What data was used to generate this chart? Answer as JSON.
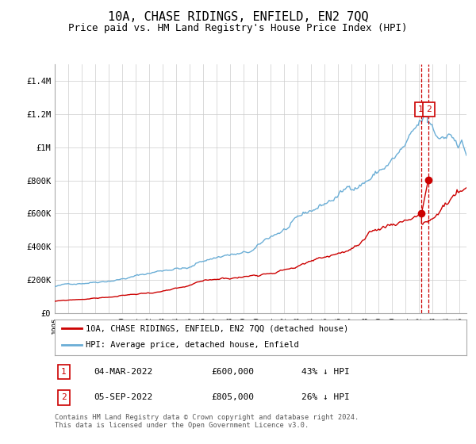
{
  "title": "10A, CHASE RIDINGS, ENFIELD, EN2 7QQ",
  "subtitle": "Price paid vs. HM Land Registry's House Price Index (HPI)",
  "title_fontsize": 11,
  "subtitle_fontsize": 9,
  "ylim": [
    0,
    1500000
  ],
  "xlim_start": 1995.0,
  "xlim_end": 2025.5,
  "yticks": [
    0,
    200000,
    400000,
    600000,
    800000,
    1000000,
    1200000,
    1400000
  ],
  "ytick_labels": [
    "£0",
    "£200K",
    "£400K",
    "£600K",
    "£800K",
    "£1M",
    "£1.2M",
    "£1.4M"
  ],
  "hpi_color": "#6baed6",
  "price_color": "#cc0000",
  "dashed_color": "#cc0000",
  "marker_color": "#cc0000",
  "legend_entries": [
    "10A, CHASE RIDINGS, ENFIELD, EN2 7QQ (detached house)",
    "HPI: Average price, detached house, Enfield"
  ],
  "sale1_date": 2022.17,
  "sale1_price": 600000,
  "sale2_date": 2022.67,
  "sale2_price": 805000,
  "annotation_box_color": "#cc0000",
  "table_row1": [
    "1",
    "04-MAR-2022",
    "£600,000",
    "43% ↓ HPI"
  ],
  "table_row2": [
    "2",
    "05-SEP-2022",
    "£805,000",
    "26% ↓ HPI"
  ],
  "footnote": "Contains HM Land Registry data © Crown copyright and database right 2024.\nThis data is licensed under the Open Government Licence v3.0.",
  "background_color": "#ffffff",
  "grid_color": "#cccccc"
}
